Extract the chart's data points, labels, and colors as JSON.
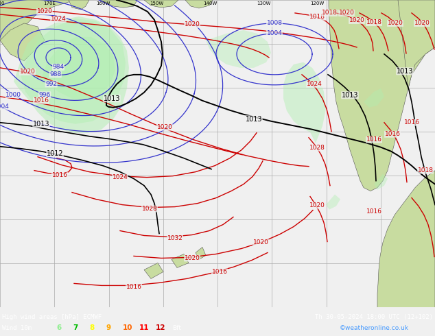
{
  "title_line1": "High wind areas [hPa] ECMWF",
  "title_line2": "Th 30-05-2024 18:00 UTC (12+102)",
  "subtitle": "Wind 10m",
  "legend_values": [
    "6",
    "7",
    "8",
    "9",
    "10",
    "11",
    "12"
  ],
  "legend_colors": [
    "#90ee90",
    "#00bb00",
    "#ffff00",
    "#ffa500",
    "#ff6600",
    "#ff0000",
    "#cc0000"
  ],
  "legend_unit": "Bft",
  "copyright": "©weatheronline.co.uk",
  "ocean_color": "#f0f0f0",
  "land_color": "#c8dca0",
  "wind_green_color": "#b0eeb0",
  "grid_color": "#aaaaaa",
  "blue_iso_color": "#3333cc",
  "red_iso_color": "#cc0000",
  "black_iso_color": "#000000",
  "bottom_bar_color": "#000000",
  "figwidth": 6.34,
  "figheight": 4.9,
  "dpi": 100
}
